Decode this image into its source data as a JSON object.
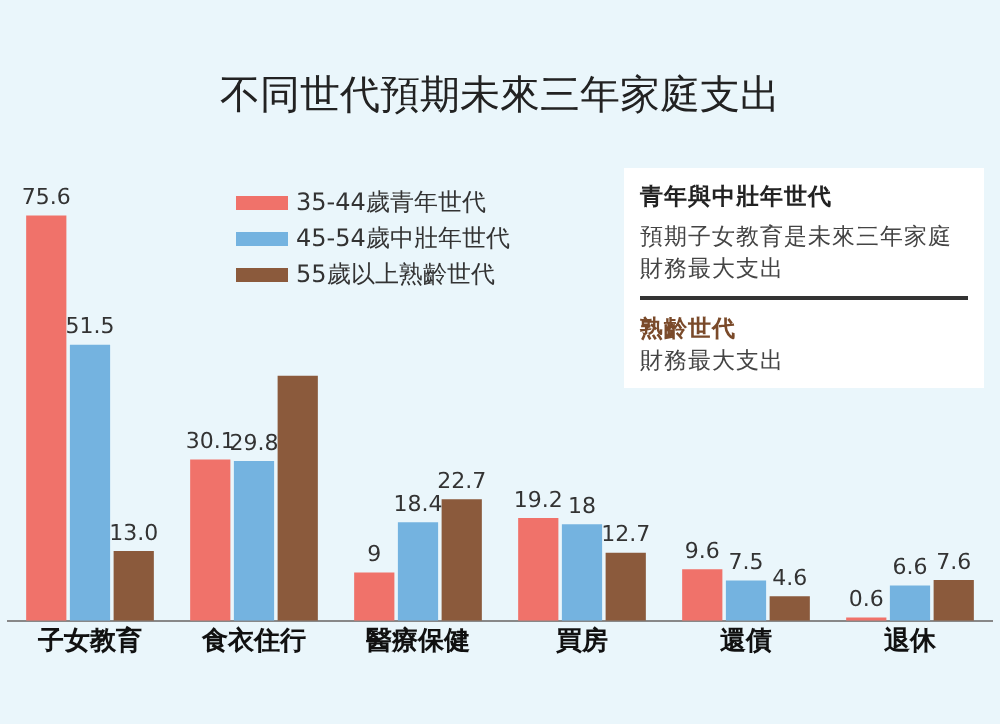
{
  "chart_data": {
    "type": "bar",
    "title": "不同世代預期未來三年家庭支出",
    "categories": [
      "子女教育",
      "食衣住行",
      "醫療保健",
      "買房",
      "還債",
      "退休"
    ],
    "series": [
      {
        "name": "35-44歲青年世代",
        "color": "#f0726a",
        "values": [
          75.6,
          30.1,
          9,
          19.2,
          9.6,
          0.6
        ],
        "value_labels": [
          "75.6",
          "30.1",
          "9",
          "19.2",
          "9.6",
          "0.6"
        ]
      },
      {
        "name": "45-54歲中壯年世代",
        "color": "#74b3e0",
        "values": [
          51.5,
          29.8,
          18.4,
          18,
          7.5,
          6.6
        ],
        "value_labels": [
          "51.5",
          "29.8",
          "18.4",
          "18",
          "7.5",
          "6.6"
        ]
      },
      {
        "name": "55歲以上熟齡世代",
        "color": "#8b5a3c",
        "values": [
          13.0,
          45.7,
          22.7,
          12.7,
          4.6,
          7.6
        ],
        "value_labels": [
          "13.0",
          null,
          "22.7",
          "12.7",
          "4.6",
          "7.6"
        ]
      }
    ],
    "tick_labels": "x",
    "grid": false,
    "legend": "top",
    "annotations": [
      "青年與中壯年世代",
      "預期子女教育是未來三年家庭財務最大支出",
      "熟齡世代",
      "財務最大支出"
    ]
  }
}
